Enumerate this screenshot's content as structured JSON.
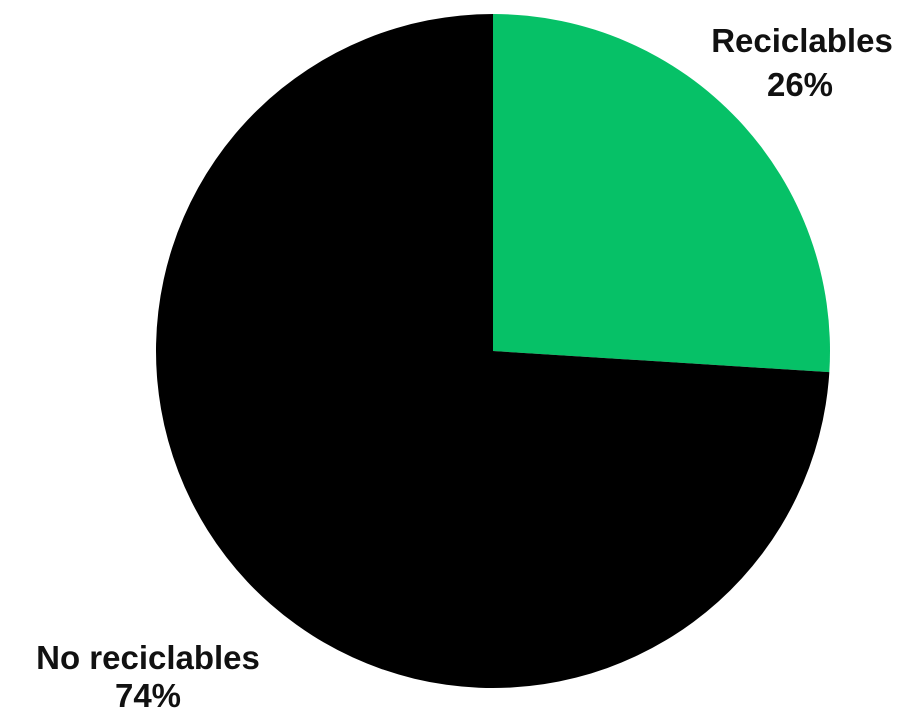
{
  "chart_data": {
    "type": "pie",
    "title": "",
    "slices": [
      {
        "label": "Reciclables",
        "value": 26,
        "value_label": "26%",
        "color": "#06C167"
      },
      {
        "label": "No reciclables",
        "value": 74,
        "value_label": "74%",
        "color": "#000000"
      }
    ],
    "start": "12 o'clock",
    "direction": "clockwise",
    "legend": "none"
  }
}
